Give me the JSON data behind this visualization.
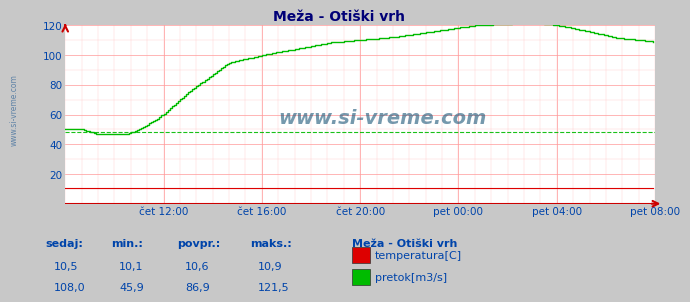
{
  "title": "Meža - Otiški vrh",
  "bg_color": "#c8c8c8",
  "plot_bg_color": "#ffffff",
  "grid_color": "#ff9999",
  "grid_color_v": "#ddaaaa",
  "x_end": 288,
  "y_min": 0,
  "y_max": 120,
  "y_ticks": [
    20,
    40,
    60,
    80,
    100,
    120
  ],
  "x_tick_labels": [
    "čet 12:00",
    "čet 16:00",
    "čet 20:00",
    "pet 00:00",
    "pet 04:00",
    "pet 08:00"
  ],
  "x_tick_positions": [
    48,
    96,
    144,
    192,
    240,
    288
  ],
  "temp_color": "#dd0000",
  "flow_color": "#00bb00",
  "flow_avg_color": "#00bb00",
  "watermark": "www.si-vreme.com",
  "watermark_color": "#1a5577",
  "legend_title": "Meža - Otiški vrh",
  "legend_items": [
    {
      "label": "temperatura[C]",
      "color": "#dd0000"
    },
    {
      "label": "pretok[m3/s]",
      "color": "#00bb00"
    }
  ],
  "stats_headers": [
    "sedaj:",
    "min.:",
    "povpr.:",
    "maks.:"
  ],
  "stats_temp": [
    "10,5",
    "10,1",
    "10,6",
    "10,9"
  ],
  "stats_flow": [
    "108,0",
    "45,9",
    "86,9",
    "121,5"
  ],
  "label_color": "#0044aa",
  "axis_color": "#cc0000",
  "sidebar_text": "www.si-vreme.com",
  "sidebar_color": "#336699"
}
